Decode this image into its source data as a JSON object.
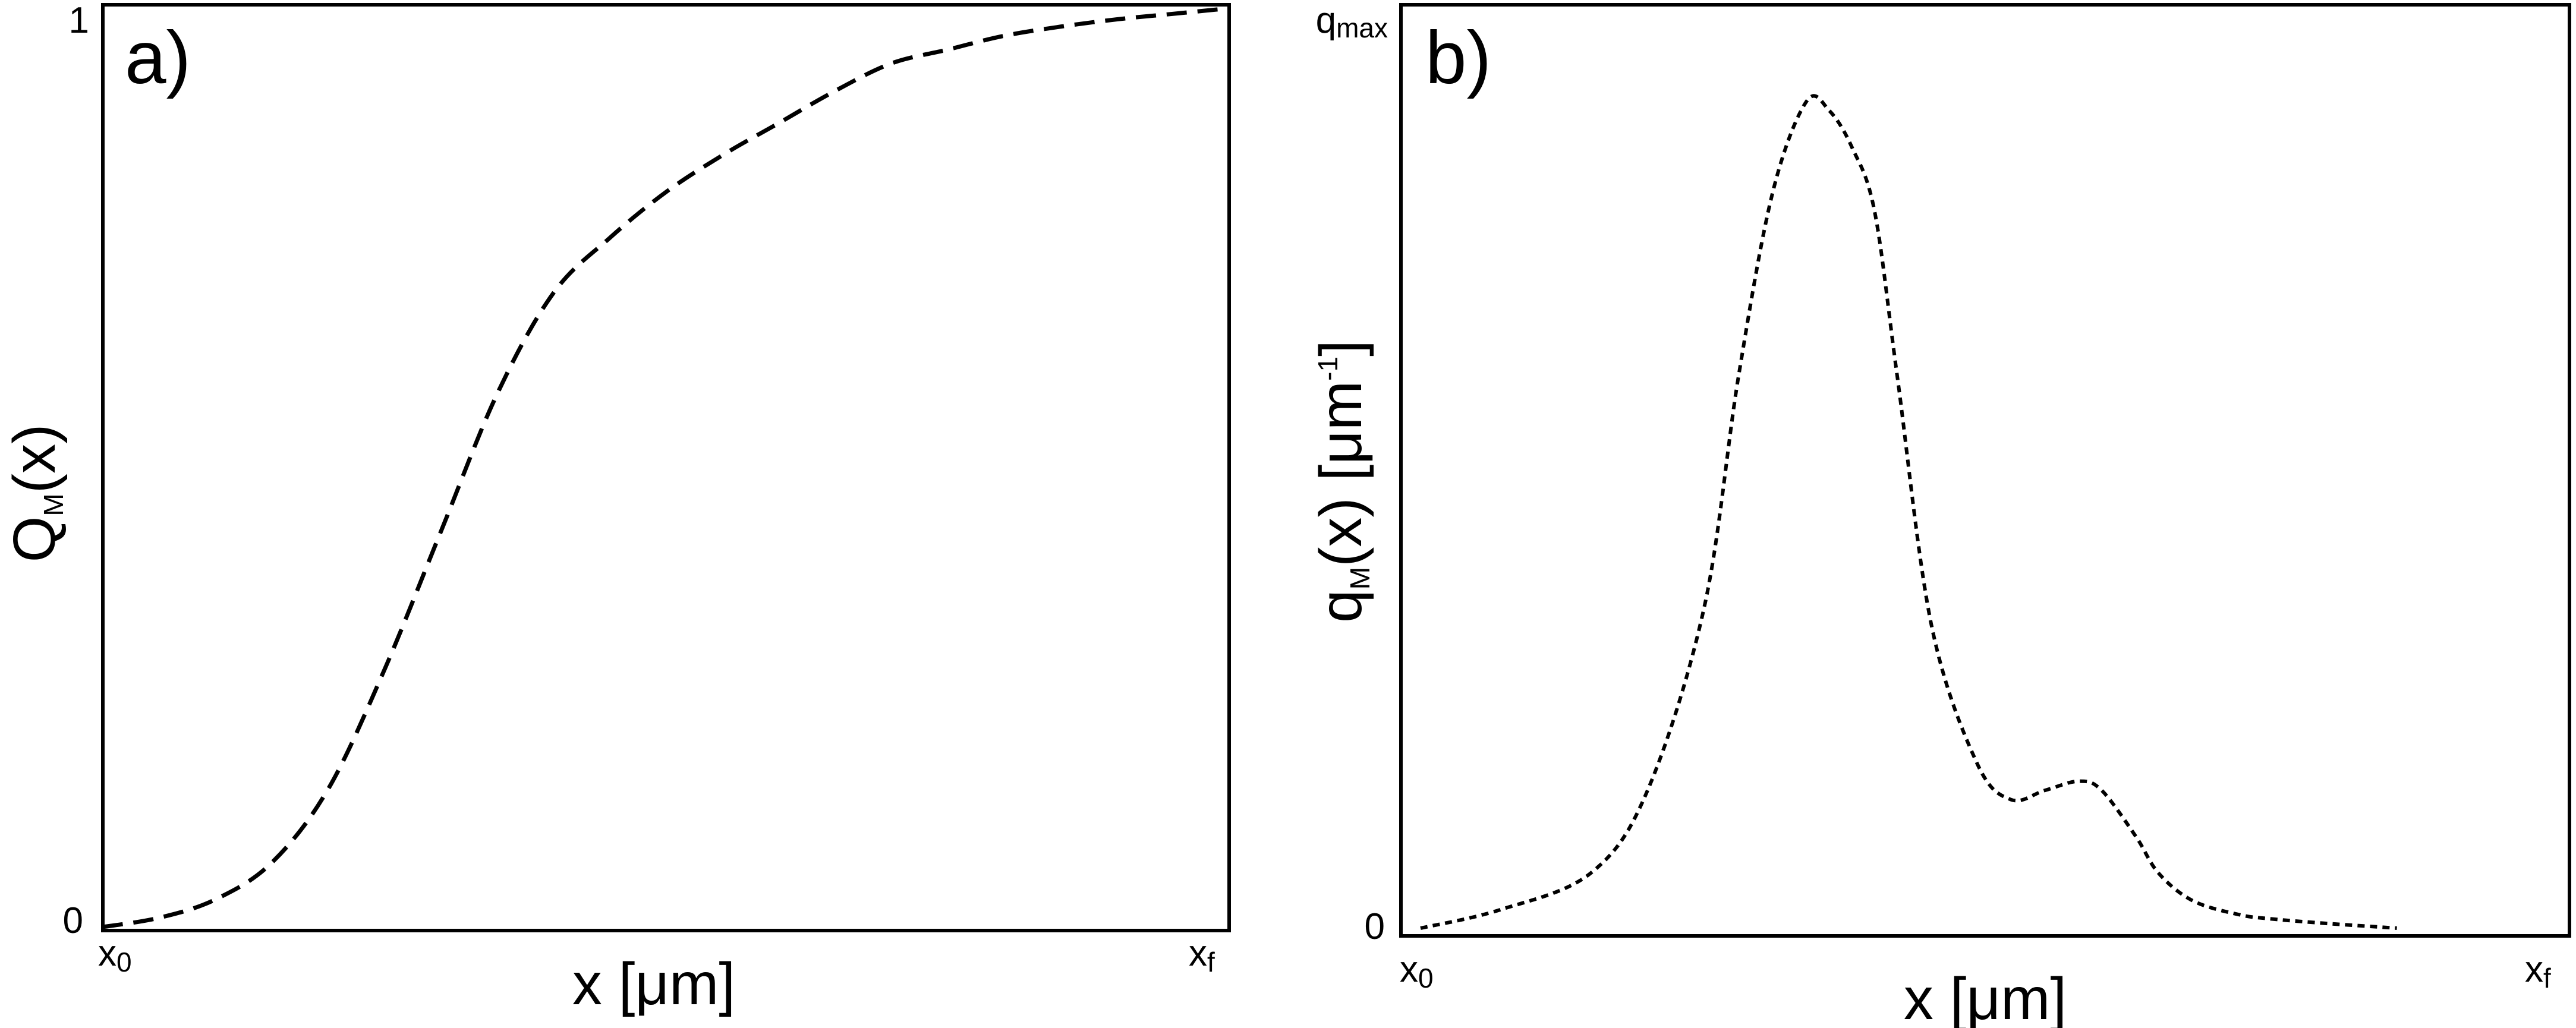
{
  "chart_data": [
    {
      "type": "line",
      "panel_label": "a)",
      "xlabel": "x [μm]",
      "ylabel": {
        "base": "Q",
        "sub": "M",
        "rest": "(x)"
      },
      "x_ticks": [
        {
          "base": "x",
          "sub": "0"
        },
        {
          "base": "x",
          "sub": "f"
        }
      ],
      "y_ticks": [
        "0",
        "1"
      ],
      "xlim": [
        0,
        1
      ],
      "ylim": [
        0,
        1
      ],
      "grid": false,
      "series": [
        {
          "style": "dashed",
          "x": [
            0,
            0.05,
            0.1,
            0.15,
            0.2,
            0.25,
            0.3,
            0.35,
            0.4,
            0.45,
            0.5,
            0.55,
            0.6,
            0.65,
            0.7,
            0.75,
            0.8,
            0.85,
            0.9,
            0.95,
            1.0
          ],
          "y": [
            0,
            0.01,
            0.03,
            0.07,
            0.15,
            0.28,
            0.43,
            0.58,
            0.69,
            0.75,
            0.8,
            0.84,
            0.875,
            0.91,
            0.94,
            0.955,
            0.97,
            0.98,
            0.988,
            0.994,
            1.0
          ]
        }
      ]
    },
    {
      "type": "line",
      "panel_label": "b)",
      "xlabel": "x [μm]",
      "ylabel": {
        "base": "q",
        "sub": "M",
        "rest": "(x) [μm",
        "sup": "-1",
        "close": "]"
      },
      "x_ticks": [
        {
          "base": "x",
          "sub": "0"
        },
        {
          "base": "x",
          "sub": "f"
        }
      ],
      "y_ticks": [
        "0",
        {
          "base": "q",
          "sub": "max"
        }
      ],
      "xlim": [
        0,
        1
      ],
      "ylim": [
        0,
        1
      ],
      "grid": false,
      "series": [
        {
          "style": "dotted",
          "x": [
            0,
            0.07,
            0.15,
            0.2,
            0.25,
            0.28,
            0.31,
            0.34,
            0.36,
            0.38,
            0.4,
            0.42,
            0.45,
            0.49,
            0.52,
            0.55,
            0.58,
            0.6,
            0.63,
            0.65,
            0.68,
            0.72,
            0.75,
            0.8,
            0.86
          ],
          "y": [
            0,
            0.02,
            0.06,
            0.15,
            0.35,
            0.6,
            0.8,
            0.9,
            0.89,
            0.85,
            0.78,
            0.6,
            0.33,
            0.18,
            0.14,
            0.15,
            0.16,
            0.15,
            0.1,
            0.06,
            0.03,
            0.015,
            0.01,
            0.005,
            0
          ]
        }
      ]
    }
  ]
}
